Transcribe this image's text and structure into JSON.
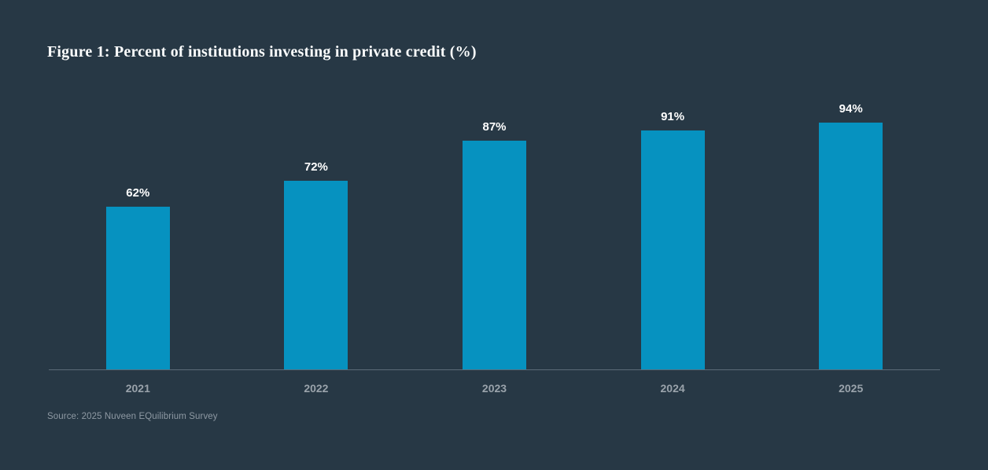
{
  "title": "Figure 1: Percent of institutions investing in private credit (%)",
  "source": "Source: 2025 Nuveen EQuilibrium Survey",
  "chart_data": {
    "type": "bar",
    "title": "Figure 1: Percent of institutions investing in private credit (%)",
    "categories": [
      "2021",
      "2022",
      "2023",
      "2024",
      "2025"
    ],
    "values": [
      62,
      72,
      87,
      91,
      94
    ],
    "value_labels": [
      "62%",
      "72%",
      "87%",
      "91%",
      "94%"
    ],
    "xlabel": "",
    "ylabel": "",
    "ylim": [
      0,
      100
    ],
    "grid": false,
    "legend": false,
    "bar_color": "#0692c0",
    "background_color": "#273845",
    "value_label_color": "#ffffff",
    "tick_label_color": "#9aa3ab",
    "axis_line_color": "#5c6b78"
  }
}
